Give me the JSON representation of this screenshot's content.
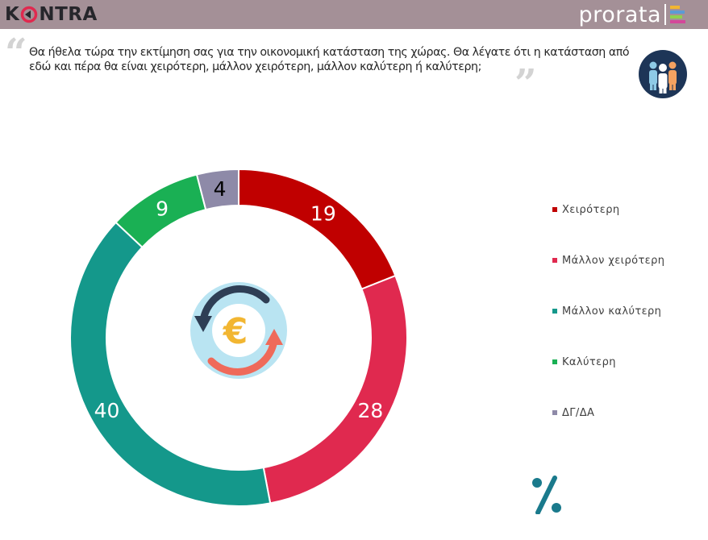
{
  "header": {
    "logo_left": {
      "pre": "K",
      "post": "NTRA"
    },
    "logo_right": {
      "text": "prorata"
    }
  },
  "question": {
    "text": "Θα ήθελα τώρα την εκτίμηση σας για την οικονομική κατάσταση της χώρας. Θα λέγατε ότι η κατάσταση από εδώ και πέρα θα είναι χειρότερη, μάλλον χειρότερη, μάλλον καλύτερη ή καλύτερη;",
    "open_quote": "“",
    "close_quote": "”"
  },
  "icons": {
    "people": "people-group-icon",
    "center": "euro-exchange-icon",
    "percent": "percent-icon"
  },
  "colors": {
    "header_bg": "#a49097",
    "prorata_stripes": [
      "#f2b632",
      "#5b9bd5",
      "#8fd14f",
      "#d4479a"
    ]
  },
  "chart_data": {
    "type": "pie",
    "donut": true,
    "categories": [
      "Χειρότερη",
      "Μάλλον χειρότερη",
      "Μάλλον καλύτερη",
      "Καλύτερη",
      "ΔΓ/ΔΑ"
    ],
    "values": [
      19,
      28,
      40,
      9,
      4
    ],
    "colors": [
      "#c00000",
      "#e0294f",
      "#14988b",
      "#1ab054",
      "#8e8aa8"
    ],
    "data_labels": [
      "19",
      "28",
      "40",
      "9",
      "4"
    ],
    "legend_position": "right",
    "unit_symbol": "%"
  }
}
